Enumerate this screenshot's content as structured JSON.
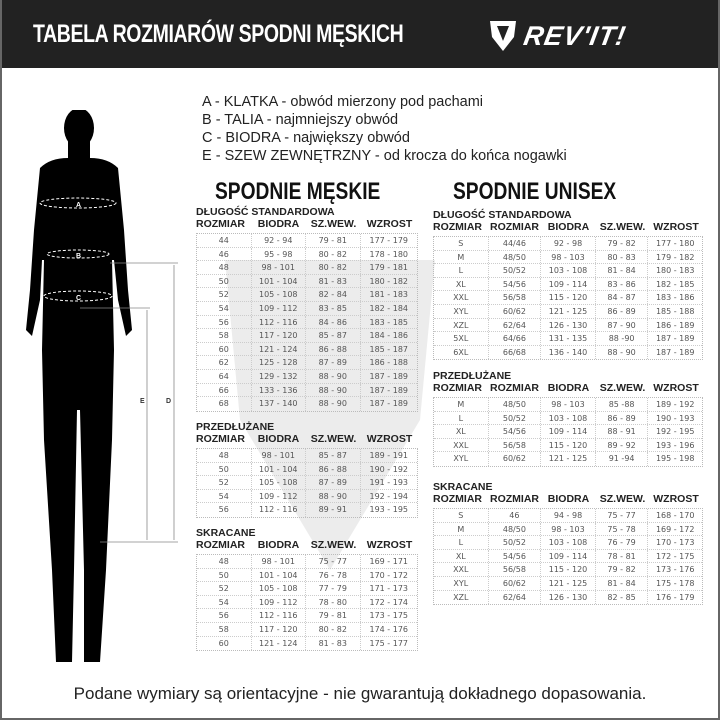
{
  "header": {
    "title": "TABELA ROZMIARÓW SPODNI MĘSKICH",
    "logo_text": "REV'IT!",
    "background": "#222222"
  },
  "legend": [
    {
      "key": "A",
      "label": "KLATKA",
      "desc": "obwód mierzony pod pachami"
    },
    {
      "key": "B",
      "label": "TALIA",
      "desc": "najmniejszy obwód"
    },
    {
      "key": "C",
      "label": "BIODRA",
      "desc": "największy obwód"
    },
    {
      "key": "E",
      "label": "SZEW ZEWNĘTRZNY",
      "desc": "od krocza do końca nogawki"
    }
  ],
  "figure": {
    "labels": [
      "A",
      "B",
      "C",
      "E",
      "D"
    ]
  },
  "mens": {
    "title": "SPODNIE MĘSKIE",
    "tables": [
      {
        "title": "DŁUGOŚĆ STANDARDOWA",
        "headers": [
          "ROZMIAR",
          "BIODRA",
          "SZ.WEW.",
          "WZROST"
        ],
        "rows": [
          [
            "44",
            "92 - 94",
            "79 - 81",
            "177 - 179"
          ],
          [
            "46",
            "95 - 98",
            "80 - 82",
            "178 - 180"
          ],
          [
            "48",
            "98 - 101",
            "80 - 82",
            "179 - 181"
          ],
          [
            "50",
            "101 - 104",
            "81 - 83",
            "180 - 182"
          ],
          [
            "52",
            "105 - 108",
            "82 - 84",
            "181 - 183"
          ],
          [
            "54",
            "109 - 112",
            "83 - 85",
            "182 - 184"
          ],
          [
            "56",
            "112 - 116",
            "84 - 86",
            "183 - 185"
          ],
          [
            "58",
            "117 - 120",
            "85 - 87",
            "184 - 186"
          ],
          [
            "60",
            "121 - 124",
            "86 - 88",
            "185 - 187"
          ],
          [
            "62",
            "125 - 128",
            "87 - 89",
            "186 - 188"
          ],
          [
            "64",
            "129 - 132",
            "88 - 90",
            "187 - 189"
          ],
          [
            "66",
            "133 - 136",
            "88 - 90",
            "187 - 189"
          ],
          [
            "68",
            "137 - 140",
            "88 - 90",
            "187 - 189"
          ]
        ]
      },
      {
        "title": "PRZEDŁUŻANE",
        "headers": [
          "ROZMIAR",
          "BIODRA",
          "SZ.WEW.",
          "WZROST"
        ],
        "rows": [
          [
            "48",
            "98 - 101",
            "85 - 87",
            "189 - 191"
          ],
          [
            "50",
            "101 - 104",
            "86 - 88",
            "190 - 192"
          ],
          [
            "52",
            "105 - 108",
            "87 - 89",
            "191 - 193"
          ],
          [
            "54",
            "109 - 112",
            "88 - 90",
            "192 - 194"
          ],
          [
            "56",
            "112 - 116",
            "89 - 91",
            "193 - 195"
          ]
        ]
      },
      {
        "title": "SKRACANE",
        "headers": [
          "ROZMIAR",
          "BIODRA",
          "SZ.WEW.",
          "WZROST"
        ],
        "rows": [
          [
            "48",
            "98 - 101",
            "75 - 77",
            "169 - 171"
          ],
          [
            "50",
            "101 - 104",
            "76 - 78",
            "170 - 172"
          ],
          [
            "52",
            "105 - 108",
            "77 - 79",
            "171 - 173"
          ],
          [
            "54",
            "109 - 112",
            "78 - 80",
            "172 - 174"
          ],
          [
            "56",
            "112 - 116",
            "79 - 81",
            "173 - 175"
          ],
          [
            "58",
            "117 - 120",
            "80 - 82",
            "174 - 176"
          ],
          [
            "60",
            "121 - 124",
            "81 - 83",
            "175 - 177"
          ]
        ]
      }
    ]
  },
  "unisex": {
    "title": "SPODNIE UNISEX",
    "tables": [
      {
        "title": "DŁUGOŚĆ STANDARDOWA",
        "headers": [
          "ROZMIAR",
          "ROZMIAR",
          "BIODRA",
          "SZ.WEW.",
          "WZROST"
        ],
        "rows": [
          [
            "S",
            "44/46",
            "92 - 98",
            "79 - 82",
            "177 - 180"
          ],
          [
            "M",
            "48/50",
            "98 - 103",
            "80 - 83",
            "179 - 182"
          ],
          [
            "L",
            "50/52",
            "103 - 108",
            "81 - 84",
            "180 - 183"
          ],
          [
            "XL",
            "54/56",
            "109 - 114",
            "83 - 86",
            "182 - 185"
          ],
          [
            "XXL",
            "56/58",
            "115 - 120",
            "84 - 87",
            "183 - 186"
          ],
          [
            "XYL",
            "60/62",
            "121 - 125",
            "86 - 89",
            "185 - 188"
          ],
          [
            "XZL",
            "62/64",
            "126 - 130",
            "87 - 90",
            "186 - 189"
          ],
          [
            "5XL",
            "64/66",
            "131 - 135",
            "88 -90",
            "187 - 189"
          ],
          [
            "6XL",
            "66/68",
            "136 - 140",
            "88 - 90",
            "187 - 189"
          ]
        ]
      },
      {
        "title": "PRZEDŁUŻANE",
        "headers": [
          "ROZMIAR",
          "ROZMIAR",
          "BIODRA",
          "SZ.WEW.",
          "WZROST"
        ],
        "rows": [
          [
            "M",
            "48/50",
            "98 - 103",
            "85 -88",
            "189 - 192"
          ],
          [
            "L",
            "50/52",
            "103 - 108",
            "86 - 89",
            "190 - 193"
          ],
          [
            "XL",
            "54/56",
            "109 - 114",
            "88 - 91",
            "192 - 195"
          ],
          [
            "XXL",
            "56/58",
            "115 - 120",
            "89 - 92",
            "193 - 196"
          ],
          [
            "XYL",
            "60/62",
            "121 - 125",
            "91 -94",
            "195 - 198"
          ]
        ]
      },
      {
        "title": "SKRACANE",
        "headers": [
          "ROZMIAR",
          "ROZMIAR",
          "BIODRA",
          "SZ.WEW.",
          "WZROST"
        ],
        "rows": [
          [
            "S",
            "46",
            "94 - 98",
            "75 - 77",
            "168 - 170"
          ],
          [
            "M",
            "48/50",
            "98 - 103",
            "75 - 78",
            "169 - 172"
          ],
          [
            "L",
            "50/52",
            "103 - 108",
            "76 - 79",
            "170 - 173"
          ],
          [
            "XL",
            "54/56",
            "109 - 114",
            "78 - 81",
            "172 - 175"
          ],
          [
            "XXL",
            "56/58",
            "115 - 120",
            "79 - 82",
            "173 - 176"
          ],
          [
            "XYL",
            "60/62",
            "121 - 125",
            "81 - 84",
            "175 - 178"
          ],
          [
            "XZL",
            "62/64",
            "126 - 130",
            "82 - 85",
            "176 - 179"
          ]
        ]
      }
    ]
  },
  "footer": "Podane wymiary są orientacyjne - nie gwarantują dokładnego dopasowania."
}
